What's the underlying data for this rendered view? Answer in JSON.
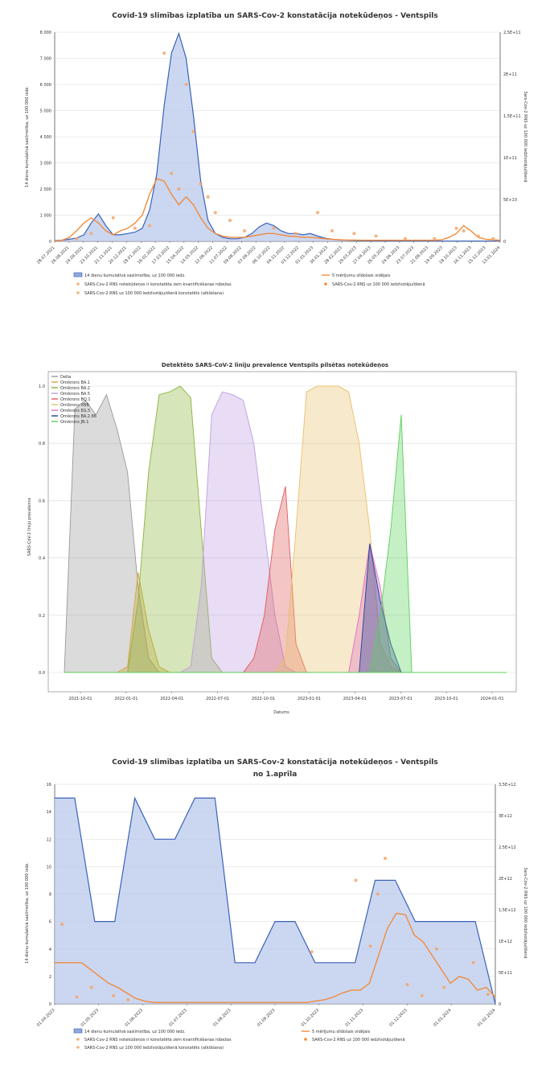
{
  "chart_data": [
    {
      "type": "line",
      "title": "Covid-19 slimības izplatība un SARS-Cov-2 konstatācija notekūdeņos - Ventspils",
      "ylabel": "14 dienu kumulatīvā saslimstība, uz 100 000 iedz.",
      "ylabel_right": "Sars-Cov-2 RNS uz 100 000 iedzīvotāju/dienā",
      "yticks_left": [
        "0",
        "1 000",
        "2 000",
        "3 000",
        "4 000",
        "5 000",
        "6 000",
        "7 000",
        "8 000"
      ],
      "yticks_right": [
        "0",
        "5E+10",
        "1E+11",
        "1,5E+11",
        "2E+11",
        "2,5E+11"
      ],
      "ylim": [
        0,
        8000
      ],
      "xticks": [
        "28.07.2021",
        "26.08.2021",
        "24.09.2021",
        "23.10.2021",
        "21.11.2021",
        "20.12.2021",
        "18.01.2022",
        "16.02.2022",
        "17.03.2022",
        "15.04.2022",
        "14.05.2022",
        "12.06.2022",
        "11.07.2022",
        "09.08.2022",
        "07.09.2022",
        "06.10.2022",
        "04.11.2022",
        "03.12.2022",
        "01.01.2023",
        "30.01.2023",
        "28.02.2023",
        "29.03.2023",
        "27.04.2023",
        "26.05.2023",
        "24.06.2023",
        "23.07.2023",
        "21.08.2023",
        "19.09.2023",
        "18.10.2023",
        "16.11.2023",
        "15.12.2023",
        "13.01.2024"
      ],
      "legend": [
        "14 dienu kumulatīvā saslimstība, uz 100 000 iedz.",
        "5 mērījumu slīdošais vidējais",
        "SARS-Cov-2 RNS notekūdeņos ir konstatēta zem kvantificēšanas robežas",
        "SARS-Cov-2 RNS uz 100 000 iedzīvotāju/dienā",
        "SARS-Cov-2 RNS uz 100 000 iedzīvotāju/dienā konstatēts (atklāšana)"
      ],
      "incidence": [
        30,
        40,
        80,
        120,
        250,
        700,
        1050,
        600,
        250,
        250,
        300,
        350,
        500,
        1200,
        2600,
        5200,
        7200,
        7950,
        7000,
        4800,
        2300,
        800,
        300,
        150,
        100,
        100,
        150,
        300,
        550,
        700,
        600,
        400,
        300,
        300,
        250,
        300,
        200,
        120,
        80,
        50,
        40,
        30,
        20,
        20,
        15,
        15,
        10,
        10,
        10,
        10,
        10,
        10,
        10,
        10,
        10,
        10,
        10,
        10,
        10,
        10,
        10,
        10
      ],
      "rna_avg": [
        20,
        40,
        150,
        400,
        700,
        900,
        700,
        400,
        250,
        400,
        500,
        700,
        1000,
        1800,
        2400,
        2300,
        1800,
        1400,
        1700,
        1400,
        900,
        500,
        300,
        200,
        150,
        150,
        150,
        200,
        250,
        300,
        300,
        250,
        200,
        180,
        150,
        150,
        130,
        100,
        80,
        60,
        50,
        50,
        40,
        40,
        40,
        40,
        40,
        40,
        40,
        40,
        40,
        40,
        40,
        60,
        150,
        300,
        600,
        400,
        150,
        80,
        60,
        40
      ],
      "rna_points": [
        [
          3,
          100
        ],
        [
          5,
          300
        ],
        [
          8,
          900
        ],
        [
          11,
          500
        ],
        [
          13,
          600
        ],
        [
          15,
          7200
        ],
        [
          16,
          2600
        ],
        [
          17,
          2000
        ],
        [
          18,
          6000
        ],
        [
          19,
          4200
        ],
        [
          20,
          2200
        ],
        [
          21,
          1700
        ],
        [
          22,
          1100
        ],
        [
          24,
          800
        ],
        [
          26,
          400
        ],
        [
          30,
          500
        ],
        [
          33,
          300
        ],
        [
          36,
          1100
        ],
        [
          38,
          400
        ],
        [
          41,
          300
        ],
        [
          44,
          200
        ],
        [
          48,
          100
        ],
        [
          52,
          100
        ],
        [
          55,
          500
        ],
        [
          56,
          400
        ],
        [
          58,
          200
        ],
        [
          60,
          100
        ]
      ]
    },
    {
      "type": "area",
      "title": "Detektēto SARS-CoV-2 līniju prevalence Ventspils pilsētas notekūdeņos",
      "xlabel": "Datums",
      "ylabel": "SARS-CoV-2 līniju prevalence",
      "ylim": [
        0,
        1.0
      ],
      "yticks": [
        "0.0",
        "0.2",
        "0.4",
        "0.6",
        "0.8",
        "1.0"
      ],
      "xticks": [
        "2021-10-01",
        "2022-01-01",
        "2022-04-01",
        "2022-07-01",
        "2022-10-01",
        "2023-01-01",
        "2023-04-01",
        "2023-07-01",
        "2023-10-01",
        "2024-01-01"
      ],
      "series": [
        {
          "name": "Delta",
          "color": "#999999",
          "values": [
            0,
            0.92,
            0.95,
            0.9,
            0.97,
            0.85,
            0.7,
            0.3,
            0.05,
            0,
            0,
            0,
            0,
            0,
            0,
            0,
            0,
            0,
            0,
            0,
            0,
            0,
            0,
            0,
            0,
            0,
            0,
            0,
            0,
            0,
            0,
            0,
            0,
            0,
            0,
            0,
            0,
            0,
            0,
            0,
            0,
            0,
            0
          ]
        },
        {
          "name": "Omikrons BA.1",
          "color": "#d4a33a",
          "values": [
            0,
            0,
            0,
            0,
            0,
            0,
            0.02,
            0.35,
            0.15,
            0.02,
            0,
            0,
            0,
            0,
            0,
            0,
            0,
            0,
            0,
            0,
            0,
            0,
            0,
            0,
            0,
            0,
            0,
            0,
            0,
            0,
            0,
            0,
            0,
            0,
            0,
            0,
            0,
            0,
            0,
            0,
            0,
            0,
            0
          ]
        },
        {
          "name": "Omikrons BA.2",
          "color": "#8ab43a",
          "values": [
            0,
            0,
            0,
            0,
            0,
            0,
            0,
            0.25,
            0.7,
            0.97,
            0.98,
            1.0,
            0.96,
            0.5,
            0.05,
            0,
            0,
            0,
            0,
            0,
            0,
            0,
            0,
            0,
            0,
            0,
            0,
            0,
            0,
            0,
            0,
            0,
            0,
            0,
            0,
            0,
            0,
            0,
            0,
            0,
            0,
            0,
            0
          ]
        },
        {
          "name": "Omikrons BA.5",
          "color": "#bc9fe0",
          "values": [
            0,
            0,
            0,
            0,
            0,
            0,
            0,
            0,
            0,
            0,
            0,
            0,
            0.02,
            0.3,
            0.9,
            0.98,
            0.97,
            0.95,
            0.8,
            0.5,
            0.2,
            0.02,
            0,
            0,
            0,
            0,
            0,
            0,
            0,
            0,
            0,
            0,
            0,
            0,
            0,
            0,
            0,
            0,
            0,
            0,
            0,
            0,
            0
          ]
        },
        {
          "name": "Omikrons BQ.1",
          "color": "#e05a5a",
          "values": [
            0,
            0,
            0,
            0,
            0,
            0,
            0,
            0,
            0,
            0,
            0,
            0,
            0,
            0,
            0,
            0,
            0,
            0,
            0.05,
            0.2,
            0.5,
            0.65,
            0.1,
            0,
            0,
            0,
            0,
            0,
            0,
            0,
            0,
            0,
            0,
            0,
            0,
            0,
            0,
            0,
            0,
            0,
            0,
            0,
            0
          ]
        },
        {
          "name": "Omikrons XBB",
          "color": "#e8c06a",
          "values": [
            0,
            0,
            0,
            0,
            0,
            0,
            0,
            0,
            0,
            0,
            0,
            0,
            0,
            0,
            0,
            0,
            0,
            0,
            0,
            0,
            0,
            0.05,
            0.5,
            0.98,
            1.0,
            1.0,
            1.0,
            0.98,
            0.8,
            0.5,
            0.1,
            0.02,
            0,
            0,
            0,
            0,
            0,
            0,
            0,
            0,
            0,
            0,
            0
          ]
        },
        {
          "name": "Omikrons EG.5",
          "color": "#e070c0",
          "values": [
            0,
            0,
            0,
            0,
            0,
            0,
            0,
            0,
            0,
            0,
            0,
            0,
            0,
            0,
            0,
            0,
            0,
            0,
            0,
            0,
            0,
            0,
            0,
            0,
            0,
            0,
            0,
            0,
            0.2,
            0.45,
            0.3,
            0.05,
            0,
            0,
            0,
            0,
            0,
            0,
            0,
            0,
            0,
            0,
            0
          ]
        },
        {
          "name": "Omikrons BA.2.86",
          "color": "#1f3f9f",
          "values": [
            0,
            0,
            0,
            0,
            0,
            0,
            0,
            0,
            0,
            0,
            0,
            0,
            0,
            0,
            0,
            0,
            0,
            0,
            0,
            0,
            0,
            0,
            0,
            0,
            0,
            0,
            0,
            0,
            0,
            0.45,
            0.25,
            0.1,
            0,
            0,
            0,
            0,
            0,
            0,
            0,
            0,
            0,
            0,
            0
          ]
        },
        {
          "name": "Omikrons JN.1",
          "color": "#5ad05a",
          "values": [
            0,
            0,
            0,
            0,
            0,
            0,
            0,
            0,
            0,
            0,
            0,
            0,
            0,
            0,
            0,
            0,
            0,
            0,
            0,
            0,
            0,
            0,
            0,
            0,
            0,
            0,
            0,
            0,
            0,
            0,
            0.2,
            0.5,
            0.9,
            0,
            0,
            0,
            0,
            0,
            0,
            0,
            0,
            0,
            0
          ]
        }
      ]
    },
    {
      "type": "line",
      "title": "Covid-19 slimības izplatība un SARS-Cov-2 konstatācija notekūdeņos - Ventspils",
      "subtitle": "no 1.aprīla",
      "ylabel": "14 dienu kumulatīvā saslimstība, uz 100 000 iedz.",
      "ylabel_right": "Sars-Cov-2 RNS uz 100 000 iedzīvotāju/dienā",
      "ylim": [
        0,
        16
      ],
      "yticks_left": [
        "0",
        "2",
        "4",
        "6",
        "8",
        "10",
        "12",
        "14",
        "16"
      ],
      "yticks_right": [
        "0",
        "5E+11",
        "1E+12",
        "1,5E+12",
        "2E+12",
        "2,5E+12",
        "3E+12",
        "3,5E+12"
      ],
      "xticks": [
        "01.04.2023",
        "01.05.2023",
        "01.06.2023",
        "01.07.2023",
        "01.08.2023",
        "01.09.2023",
        "01.10.2023",
        "01.11.2023",
        "01.12.2023",
        "01.01.2024",
        "01.02.2024"
      ],
      "legend": [
        "14 dienu kumulatīvā saslimstība, uz 100 000 iedz.",
        "5 mērījumu slīdošais vidējais",
        "SARS-Cov-2 RNS notekūdeņos ir konstatēta zem kvantificēšanas robežas",
        "SARS-Cov-2 RNS uz 100 000 iedzīvotāju/dienā",
        "SARS-Cov-2 RNS uz 100 000 iedzīvotāju/dienā konstatēts (atklāšana)"
      ],
      "incidence": [
        15,
        15,
        6,
        6,
        15,
        12,
        12,
        15,
        15,
        3,
        3,
        6,
        6,
        3,
        3,
        3,
        9,
        9,
        6,
        6,
        6,
        6,
        0
      ],
      "rna_avg": [
        3,
        3,
        3,
        3,
        2.5,
        2,
        1.5,
        1.2,
        0.8,
        0.4,
        0.2,
        0.1,
        0.1,
        0.1,
        0.1,
        0.1,
        0.1,
        0.1,
        0.1,
        0.1,
        0.1,
        0.1,
        0.1,
        0.1,
        0.1,
        0.1,
        0.1,
        0.1,
        0.1,
        0.2,
        0.3,
        0.5,
        0.8,
        1.0,
        1.0,
        1.5,
        3.5,
        5.5,
        6.6,
        6.5,
        5.0,
        4.5,
        3.5,
        2.5,
        1.5,
        2.0,
        1.8,
        1.0,
        1.2,
        0.5
      ],
      "rna_points": [
        [
          1,
          5.8
        ],
        [
          3,
          0.5
        ],
        [
          5,
          1.2
        ],
        [
          8,
          0.6
        ],
        [
          10,
          0.3
        ],
        [
          35,
          3.8
        ],
        [
          41,
          9.0
        ],
        [
          43,
          4.2
        ],
        [
          45,
          10.6
        ],
        [
          44,
          8.0
        ],
        [
          48,
          1.4
        ],
        [
          50,
          0.6
        ],
        [
          52,
          4.0
        ],
        [
          53,
          1.2
        ],
        [
          57,
          3.0
        ],
        [
          59,
          0.7
        ]
      ]
    }
  ]
}
